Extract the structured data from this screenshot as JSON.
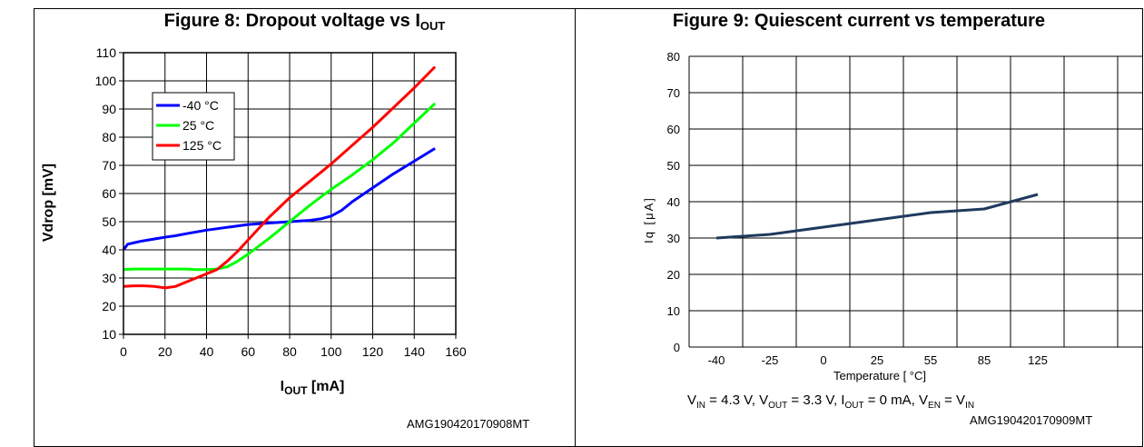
{
  "chart_data": [
    {
      "type": "line",
      "title_prefix": "Figure 8: Dropout voltage vs I",
      "title_sub": "OUT",
      "xlabel_main": "I",
      "xlabel_sub": "OUT",
      "xlabel_suffix": " [mA]",
      "ylabel": "Vdrop [mV]",
      "xlim": [
        0,
        160
      ],
      "ylim": [
        10,
        110
      ],
      "x_ticks": [
        0,
        20,
        40,
        60,
        80,
        100,
        120,
        140,
        160
      ],
      "y_ticks": [
        10,
        20,
        30,
        40,
        50,
        60,
        70,
        80,
        90,
        100,
        110
      ],
      "grid": true,
      "legend_position": "top-left",
      "series": [
        {
          "name": "-40 °C",
          "color": "#0000ff",
          "x": [
            0,
            2,
            5,
            8,
            12,
            16,
            20,
            25,
            30,
            40,
            50,
            60,
            70,
            80,
            90,
            95,
            100,
            105,
            110,
            120,
            130,
            140,
            150
          ],
          "y": [
            40,
            42,
            42.5,
            43,
            43.5,
            44,
            44.5,
            45,
            45.7,
            47,
            48,
            49,
            49.5,
            50,
            50.5,
            51,
            52,
            54,
            57,
            62,
            67,
            71.5,
            76
          ]
        },
        {
          "name": "25 °C",
          "color": "#00ff00",
          "x": [
            0,
            5,
            10,
            20,
            30,
            35,
            40,
            45,
            50,
            55,
            60,
            70,
            80,
            90,
            100,
            110,
            120,
            130,
            140,
            150
          ],
          "y": [
            33,
            33.2,
            33.2,
            33.2,
            33.2,
            33,
            33,
            33.2,
            34,
            36,
            38.5,
            44,
            50,
            56,
            61.5,
            66.5,
            72,
            78,
            85,
            92
          ]
        },
        {
          "name": "125 °C",
          "color": "#ff0000",
          "x": [
            0,
            5,
            10,
            15,
            20,
            25,
            30,
            35,
            40,
            45,
            50,
            55,
            60,
            65,
            70,
            80,
            90,
            100,
            110,
            120,
            130,
            140,
            150
          ],
          "y": [
            27,
            27.2,
            27.2,
            27,
            26.5,
            27,
            28.5,
            30,
            31.5,
            33,
            36,
            39.5,
            43.5,
            47.5,
            51.5,
            58.5,
            64.5,
            70.5,
            77,
            83.5,
            90.5,
            97.5,
            105
          ]
        }
      ],
      "reference": "AMG190420170908MT"
    },
    {
      "type": "line",
      "title": "Figure 9: Quiescent current vs temperature",
      "xlabel": "Temperature [ °C]",
      "ylabel": "Iq [μA]",
      "categories": [
        "-40",
        "-25",
        "0",
        "25",
        "55",
        "85",
        "125"
      ],
      "ylim": [
        0,
        80
      ],
      "y_ticks": [
        0,
        10,
        20,
        30,
        40,
        50,
        60,
        70,
        80
      ],
      "grid": true,
      "series": [
        {
          "color": "#1f3a5f",
          "values": [
            30,
            31,
            33,
            35,
            37,
            38,
            42
          ]
        }
      ],
      "condition": {
        "vin_label": "V",
        "vin_sub": "IN",
        "vin_val": " = 4.3 V, ",
        "vout_label": "V",
        "vout_sub": "OUT",
        "vout_val": " = 3.3 V, ",
        "iout_label": "I",
        "iout_sub": "OUT",
        "iout_val": " = 0 mA, ",
        "ven_label": "V",
        "ven_sub": "EN",
        "ven_eq": " = V",
        "ven_rhs_sub": "IN"
      },
      "reference": "AMG190420170909MT"
    }
  ]
}
